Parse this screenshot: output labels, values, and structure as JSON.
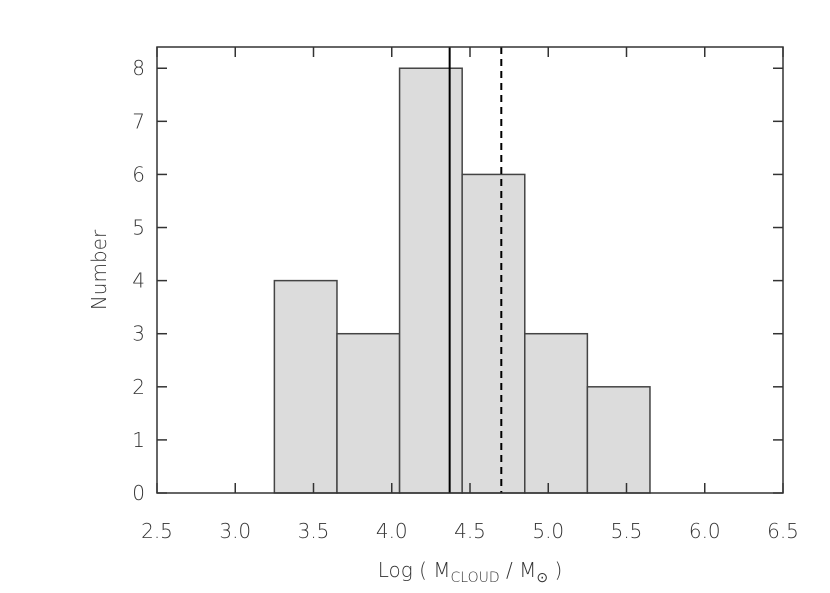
{
  "chart_data": {
    "type": "histogram",
    "xlabel": [
      "Log ( M",
      "CLOUD",
      " / M",
      "⊙",
      " )"
    ],
    "ylabel": "Number",
    "bins": [
      3.25,
      3.65,
      4.05,
      4.45,
      4.85,
      5.25,
      5.65
    ],
    "counts": [
      4,
      3,
      8,
      6,
      3,
      2
    ],
    "color": "#dcdcdc",
    "edgecolor": "#444444",
    "xlim": [
      2.5,
      6.5
    ],
    "ylim": [
      0,
      8.4
    ],
    "xticks": [
      2.5,
      {
        "value": 3,
        "label": "3.0"
      },
      3.5,
      {
        "value": 4,
        "label": "4.0"
      },
      4.5,
      {
        "value": 5,
        "label": "5.0"
      },
      5.5,
      {
        "value": 6,
        "label": "6.0"
      },
      6.5
    ],
    "yticks": [
      0,
      1,
      2,
      3,
      4,
      5,
      6,
      7,
      8
    ],
    "vlines": [
      {
        "value": 4.37,
        "style": "solid"
      },
      {
        "value": 4.7,
        "style": "dashed"
      }
    ],
    "grid": false
  }
}
